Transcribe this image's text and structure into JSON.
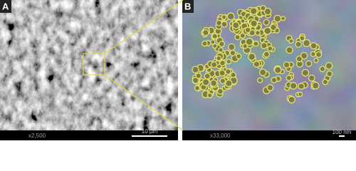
{
  "panels": [
    {
      "label": "A",
      "magnification": "x2,500",
      "scale_bar": "10 µm"
    },
    {
      "label": "B",
      "magnification": "x33,000",
      "scale_bar": "100 nm"
    }
  ]
}
